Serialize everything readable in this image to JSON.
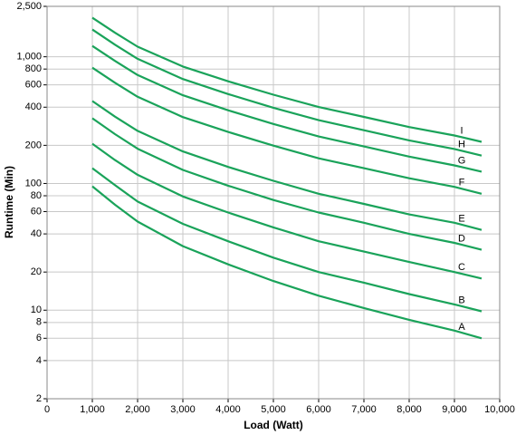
{
  "chart_data": {
    "type": "line",
    "x_label": "Load (Watt)",
    "y_label": "Runtime (Min)",
    "log_y": true,
    "grid": true,
    "color": "#1aa35a",
    "x": [
      1000,
      1500,
      2000,
      3000,
      4000,
      5000,
      6000,
      7000,
      8000,
      9000,
      9600
    ],
    "xlim": [
      0,
      10000
    ],
    "xticks": [
      0,
      {
        "value": 1000,
        "label": "1,000"
      },
      {
        "value": 2000,
        "label": "2,000"
      },
      {
        "value": 3000,
        "label": "3,000"
      },
      {
        "value": 4000,
        "label": "4,000"
      },
      {
        "value": 5000,
        "label": "5,000"
      },
      {
        "value": 6000,
        "label": "6,000"
      },
      {
        "value": 7000,
        "label": "7,000"
      },
      {
        "value": 8000,
        "label": "8,000"
      },
      {
        "value": 9000,
        "label": "9,000"
      },
      {
        "value": 10000,
        "label": "10,000"
      }
    ],
    "ylim": [
      2,
      2500
    ],
    "yticks": [
      2,
      4,
      6,
      8,
      10,
      20,
      40,
      60,
      80,
      100,
      200,
      400,
      600,
      800,
      {
        "value": 1000,
        "label": "1,000"
      },
      {
        "value": 2500,
        "label": "2,500"
      }
    ],
    "series": [
      {
        "name": "A",
        "values": [
          95,
          68,
          50,
          32,
          23,
          17,
          13,
          10.4,
          8.4,
          6.9,
          6.0
        ]
      },
      {
        "name": "B",
        "values": [
          132,
          97,
          72,
          48,
          35,
          26,
          20,
          16.5,
          13.4,
          11.1,
          9.8
        ]
      },
      {
        "name": "C",
        "values": [
          206,
          153,
          117,
          79,
          59,
          45,
          35,
          29,
          24,
          20,
          17.8
        ]
      },
      {
        "name": "D",
        "values": [
          327,
          245,
          188,
          128,
          96,
          74,
          59,
          49,
          40,
          34,
          30
        ]
      },
      {
        "name": "E",
        "values": [
          447,
          337,
          260,
          179,
          135,
          105,
          83,
          69,
          57,
          49,
          43
        ]
      },
      {
        "name": "F",
        "values": [
          820,
          624,
          483,
          334,
          255,
          199,
          158,
          132,
          110,
          94,
          83
        ]
      },
      {
        "name": "G",
        "values": [
          1218,
          927,
          718,
          497,
          378,
          295,
          235,
          196,
          163,
          139,
          124
        ]
      },
      {
        "name": "H",
        "values": [
          1640,
          1245,
          964,
          667,
          508,
          396,
          316,
          263,
          219,
          187,
          166
        ]
      },
      {
        "name": "I",
        "values": [
          2030,
          1549,
          1202,
          838,
          640,
          502,
          401,
          335,
          279,
          239,
          213
        ]
      }
    ]
  }
}
